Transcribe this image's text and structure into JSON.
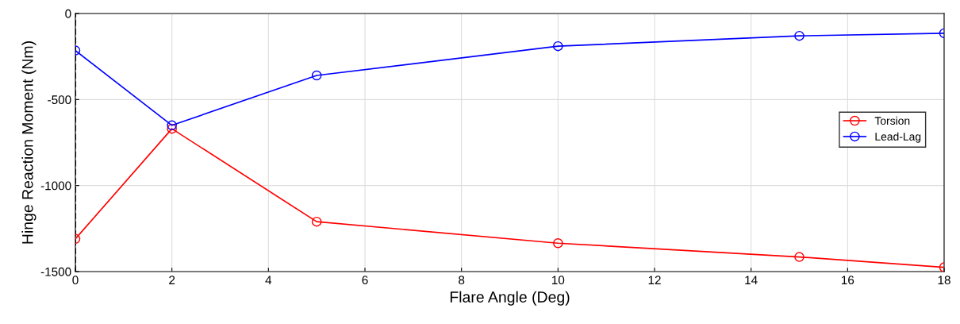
{
  "chart_data": {
    "type": "line",
    "xlabel": "Flare Angle (Deg)",
    "ylabel": "Hinge Reaction Moment (Nm)",
    "x": [
      0,
      2,
      5,
      10,
      15,
      18
    ],
    "series": [
      {
        "name": "Torsion",
        "color": "#ff0000",
        "values": [
          -1310,
          -670,
          -1210,
          -1335,
          -1415,
          -1475
        ]
      },
      {
        "name": "Lead-Lag",
        "color": "#0000ff",
        "values": [
          -215,
          -650,
          -360,
          -190,
          -130,
          -115
        ]
      }
    ],
    "xlim": [
      0,
      18
    ],
    "xticks": [
      0,
      2,
      4,
      6,
      8,
      10,
      12,
      14,
      16,
      18
    ],
    "ylim": [
      -1500,
      0
    ],
    "yticks": [
      -1500,
      -1000,
      -500,
      0
    ],
    "ref_lines": [
      {
        "axis": "x",
        "value": 0,
        "color": "#000000",
        "line_style": "dashed"
      }
    ],
    "grid": true,
    "legend": "right",
    "marker": "circle",
    "line_style": "solid"
  }
}
